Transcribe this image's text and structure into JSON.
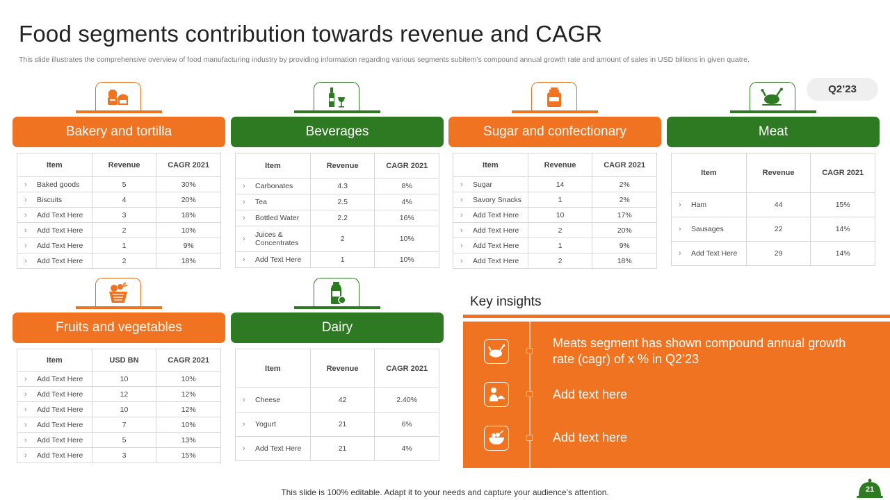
{
  "header": {
    "title": "Food segments contribution towards revenue and CAGR",
    "subtitle": "This slide illustrates the comprehensive overview of food manufacturing industry by providing information regarding various segments subitem’s compound annual growth rate and amount of sales in USD billions in given quatre."
  },
  "quarter_badge": "Q2’23",
  "colors": {
    "orange": "#ef7321",
    "green": "#2e7a22"
  },
  "segments": [
    {
      "name": "Bakery and tortilla",
      "icon": "bakery-icon",
      "theme": "orange",
      "columns": [
        "Item",
        "Revenue",
        "CAGR  2021"
      ],
      "rows": [
        [
          "Baked goods",
          "5",
          "30%"
        ],
        [
          "Biscuits",
          "4",
          "20%"
        ],
        [
          "Add Text Here",
          "3",
          "18%"
        ],
        [
          "Add Text Here",
          "2",
          "10%"
        ],
        [
          "Add Text Here",
          "1",
          "9%"
        ],
        [
          "Add Text Here",
          "2",
          "18%"
        ]
      ]
    },
    {
      "name": "Beverages",
      "icon": "bottle-glass-icon",
      "theme": "green",
      "columns": [
        "Item",
        "Revenue",
        "CAGR  2021"
      ],
      "rows": [
        [
          "Carbonates",
          "4.3",
          "8%"
        ],
        [
          "Tea",
          "2.5",
          "4%"
        ],
        [
          "Bottled Water",
          "2.2",
          "16%"
        ],
        [
          "Juices & Concentrates",
          "2",
          "10%"
        ],
        [
          "Add Text Here",
          "1",
          "10%"
        ]
      ]
    },
    {
      "name": "Sugar and confectionary",
      "icon": "sugar-jar-icon",
      "theme": "orange",
      "columns": [
        "Item",
        "Revenue",
        "CAGR  2021"
      ],
      "rows": [
        [
          "Sugar",
          "14",
          "2%"
        ],
        [
          "Savory Snacks",
          "1",
          "2%"
        ],
        [
          "Add Text Here",
          "10",
          "17%"
        ],
        [
          "Add Text Here",
          "2",
          "20%"
        ],
        [
          "Add Text Here",
          "1",
          "9%"
        ],
        [
          "Add Text Here",
          "2",
          "18%"
        ]
      ]
    },
    {
      "name": "Meat",
      "icon": "roast-chicken-icon",
      "theme": "green",
      "columns": [
        "Item",
        "Revenue",
        "CAGR  2021"
      ],
      "rows": [
        [
          "Ham",
          "44",
          "15%"
        ],
        [
          "Sausages",
          "22",
          "14%"
        ],
        [
          "Add Text Here",
          "29",
          "14%"
        ]
      ]
    },
    {
      "name": "Fruits and vegetables",
      "icon": "fruit-basket-icon",
      "theme": "orange",
      "columns": [
        "Item",
        "USD BN",
        "CAGR  2021"
      ],
      "rows": [
        [
          "Add Text Here",
          "10",
          "10%"
        ],
        [
          "Add Text Here",
          "12",
          "12%"
        ],
        [
          "Add Text Here",
          "10",
          "12%"
        ],
        [
          "Add Text Here",
          "7",
          "10%"
        ],
        [
          "Add Text Here",
          "5",
          "13%"
        ],
        [
          "Add Text Here",
          "3",
          "15%"
        ]
      ]
    },
    {
      "name": "Dairy",
      "icon": "milk-bottle-icon",
      "theme": "green",
      "columns": [
        "Item",
        "Revenue",
        "CAGR  2021"
      ],
      "rows": [
        [
          "Cheese",
          "42",
          "2.40%"
        ],
        [
          "Yogurt",
          "21",
          "6%"
        ],
        [
          "Add Text Here",
          "21",
          "4%"
        ]
      ]
    }
  ],
  "insights": {
    "title": "Key insights",
    "items": [
      {
        "icon": "chicken-icon",
        "text": "Meats segment has shown compound annual growth rate (cagr) of x % in Q2’23"
      },
      {
        "icon": "chef-icon",
        "text": "Add text here"
      },
      {
        "icon": "food-bowl-icon",
        "text": "Add text here"
      }
    ]
  },
  "footer": {
    "note": "This slide is 100% editable. Adapt it to your needs and capture your audience’s attention.",
    "page": "21"
  }
}
